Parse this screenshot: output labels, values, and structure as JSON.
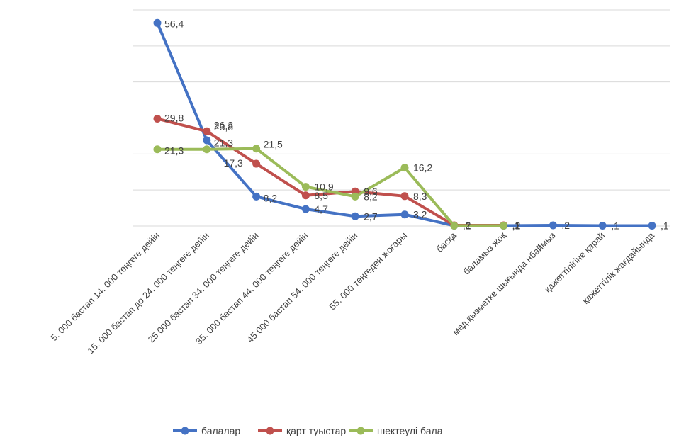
{
  "chart_data": {
    "type": "line",
    "categories": [
      "5. 000 бастап 14. 000 теңгеге дейін",
      "15. 000 бастап до 24. 000 теңгеге дейін",
      "25 000 бастап 34. 000 теңгеге дейін",
      "35. 000 бастап 44. 000 теңгеге дейін",
      "45 000 бастап 54. 000 теңгеге дейін",
      "55. 000 теңгеден жоғары",
      "басқа",
      "баламыз жоқ",
      "мед.қызметке шығында нбаймыз",
      "қажеттілігіне қарай",
      "қажеттілік жағдайында"
    ],
    "series": [
      {
        "name": "балалар",
        "color": "#4472C4",
        "values": [
          56.4,
          23.8,
          8.2,
          4.7,
          2.7,
          3.2,
          0.1,
          0.1,
          0.2,
          0.1,
          0.1
        ],
        "labels": [
          "56,4",
          "23,8",
          "8,2",
          "4,7",
          "2,7",
          "3,2",
          ",1",
          ",1",
          ",2",
          ",1",
          ",1"
        ]
      },
      {
        "name": "қарт туыстар",
        "color": "#C0504D",
        "values": [
          29.8,
          26.3,
          17.3,
          8.5,
          9.6,
          8.3,
          0.2,
          0.2,
          null,
          null,
          null
        ],
        "labels": [
          "29,8",
          "26,3",
          "17,3",
          "8,5",
          "9,6",
          "8,3",
          ",2",
          ",2",
          "",
          "",
          ""
        ]
      },
      {
        "name": "шектеулі бала",
        "color": "#9BBB59",
        "values": [
          21.3,
          21.3,
          21.5,
          10.9,
          8.2,
          16.2,
          0.1,
          0.1,
          null,
          null,
          null
        ],
        "labels": [
          "21,3",
          "21,3",
          "21,5",
          "10,9",
          "8,2",
          "16,2",
          ",1",
          ",1",
          "",
          "",
          ""
        ]
      }
    ],
    "ylim": [
      0,
      60
    ],
    "grid": true,
    "legend": "bottom",
    "xlabel": "",
    "ylabel": "",
    "title": ""
  }
}
